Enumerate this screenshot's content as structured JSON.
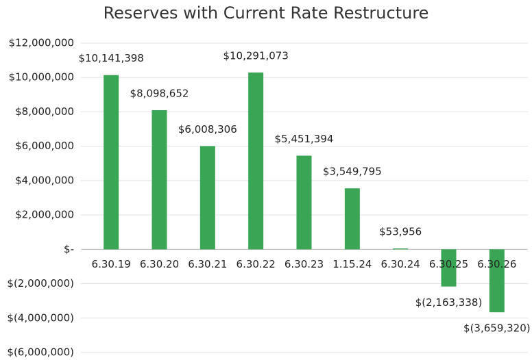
{
  "chart_data": {
    "type": "bar",
    "title": "Reserves with Current Rate Restructure",
    "categories": [
      "6.30.19",
      "6.30.20",
      "6.30.21",
      "6.30.22",
      "6.30.23",
      "1.15.24",
      "6.30.24",
      "6.30.25",
      "6.30.26"
    ],
    "values": [
      10141398,
      8098652,
      6008306,
      10291073,
      5451394,
      3549795,
      53956,
      -2163338,
      -3659320
    ],
    "value_labels": [
      "$10,141,398",
      "$8,098,652",
      "$6,008,306",
      "$10,291,073",
      "$5,451,394",
      "$3,549,795",
      "$53,956",
      "$(2,163,338)",
      "$(3,659,320)"
    ],
    "color": "#3aa655",
    "ylim": [
      -6000000,
      12000000
    ],
    "yticks": [
      {
        "value": -6000000,
        "label": "$(6,000,000)"
      },
      {
        "value": -4000000,
        "label": "$(4,000,000)"
      },
      {
        "value": -2000000,
        "label": "$(2,000,000)"
      },
      {
        "value": 0,
        "label": "$-"
      },
      {
        "value": 2000000,
        "label": "$2,000,000"
      },
      {
        "value": 4000000,
        "label": "$4,000,000"
      },
      {
        "value": 6000000,
        "label": "$6,000,000"
      },
      {
        "value": 8000000,
        "label": "$8,000,000"
      },
      {
        "value": 10000000,
        "label": "$10,000,000"
      },
      {
        "value": 12000000,
        "label": "$12,000,000"
      }
    ],
    "grid": true
  }
}
